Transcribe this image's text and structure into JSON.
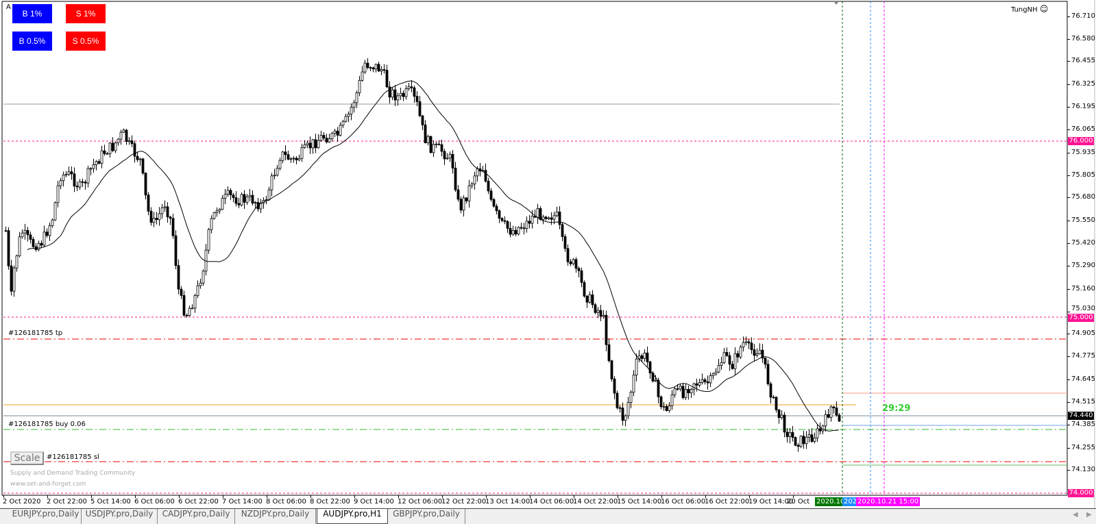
{
  "window": {
    "corner_label": "A",
    "account": "TungNH",
    "account_icon": "smiley-icon"
  },
  "trade_buttons": [
    {
      "label": "B 1%",
      "color": "#0000ff"
    },
    {
      "label": "S 1%",
      "color": "#ff0000"
    },
    {
      "label": "B 0.5%",
      "color": "#0000ff"
    },
    {
      "label": "S 0.5%",
      "color": "#ff0000"
    }
  ],
  "price_axis": {
    "ticks": [
      "76.710",
      "76.580",
      "76.455",
      "76.325",
      "76.195",
      "76.065",
      "75.935",
      "75.805",
      "75.680",
      "75.550",
      "75.420",
      "75.290",
      "75.160",
      "75.030",
      "74.905",
      "74.775",
      "74.645",
      "74.515",
      "74.385",
      "74.255",
      "74.130"
    ]
  },
  "price_tags": {
    "level_76": "76.000",
    "level_75": "75.000",
    "level_74": "74.000",
    "current": "74.440",
    "level_color": "#ff1493"
  },
  "order_labels": {
    "tp": "#126181785 tp",
    "buy": "#126181785 buy 0.06",
    "sl": "#126181785 sl"
  },
  "scale_button": "Scale",
  "watermark": {
    "line1": "Supply and Demand Trading Community",
    "line2": "www.set-and-forget.com"
  },
  "countdown": "29:29",
  "time_axis": [
    "2 Oct 2020",
    "2 Oct 22:00",
    "5 Oct 14:00",
    "6 Oct 06:00",
    "6 Oct 22:00",
    "7 Oct 14:00",
    "8 Oct 06:00",
    "8 Oct 22:00",
    "9 Oct 14:00",
    "12 Oct 06:00",
    "12 Oct 22:00",
    "13 Oct 14:00",
    "14 Oct 06:00",
    "14 Oct 22:00",
    "15 Oct 14:00",
    "16 Oct 06:00",
    "16 Oct 22:00",
    "19 Oct 14:00",
    "20 Oct"
  ],
  "time_tags": {
    "green": "2020.10.",
    "blue": "202",
    "magenta": "2020.10.21 15:00"
  },
  "tabs": [
    {
      "label": "EURJPY.pro,Daily",
      "active": false
    },
    {
      "label": "USDJPY.pro,Daily",
      "active": false
    },
    {
      "label": "CADJPY.pro,Daily",
      "active": false
    },
    {
      "label": "NZDJPY.pro,Daily",
      "active": false
    },
    {
      "label": "AUDJPY.pro,H1",
      "active": true
    },
    {
      "label": "GBPJPY.pro,Daily",
      "active": false
    }
  ]
}
